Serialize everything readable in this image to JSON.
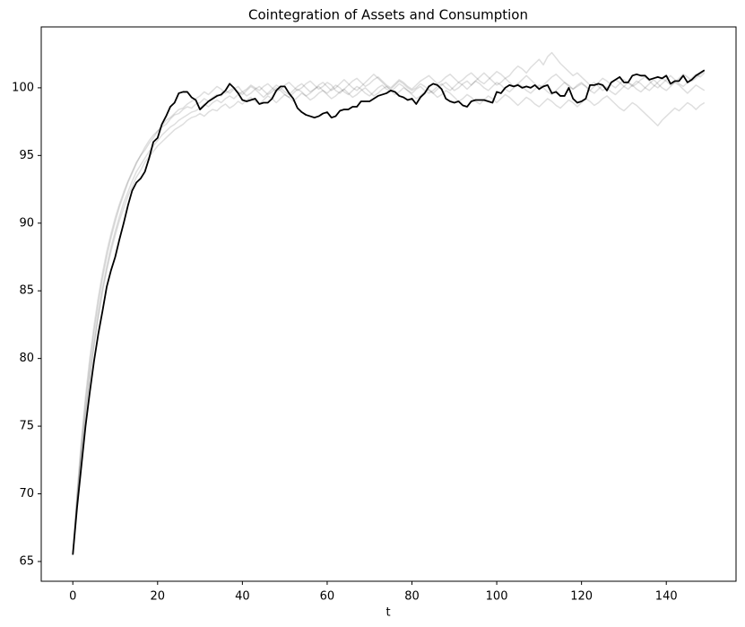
{
  "chart_data": {
    "type": "line",
    "title": "Cointegration of Assets and Consumption",
    "xlabel": "t",
    "x": [
      0,
      1,
      2,
      3,
      4,
      5,
      6,
      7,
      8,
      9,
      10,
      11,
      12,
      13,
      14,
      15,
      16,
      17,
      18,
      19,
      20,
      21,
      22,
      23,
      24,
      25,
      26,
      27,
      28,
      29,
      30,
      31,
      32,
      33,
      34,
      35,
      36,
      37,
      38,
      39,
      40,
      41,
      42,
      43,
      44,
      45,
      46,
      47,
      48,
      49,
      50,
      51,
      52,
      53,
      54,
      55,
      56,
      57,
      58,
      59,
      60,
      61,
      62,
      63,
      64,
      65,
      66,
      67,
      68,
      69,
      70,
      71,
      72,
      73,
      74,
      75,
      76,
      77,
      78,
      79,
      80,
      81,
      82,
      83,
      84,
      85,
      86,
      87,
      88,
      89,
      90,
      91,
      92,
      93,
      94,
      95,
      96,
      97,
      98,
      99,
      100,
      101,
      102,
      103,
      104,
      105,
      106,
      107,
      108,
      109,
      110,
      111,
      112,
      113,
      114,
      115,
      116,
      117,
      118,
      119,
      120,
      121,
      122,
      123,
      124,
      125,
      126,
      127,
      128,
      129,
      130,
      131,
      132,
      133,
      134,
      135,
      136,
      137,
      138,
      139,
      140,
      141,
      142,
      143,
      144,
      145,
      146,
      147,
      148,
      149
    ],
    "series": [
      {
        "color": "rgba(0,0,0,0.13)",
        "values": [
          65.5,
          69.8,
          73.5,
          76.7,
          79.5,
          81.9,
          84.0,
          85.9,
          87.5,
          88.9,
          90.1,
          91.2,
          92.1,
          93.0,
          93.7,
          94.4,
          95.0,
          95.4,
          95.9,
          96.3,
          96.8,
          97.1,
          97.3,
          97.7,
          98.0,
          98.1,
          98.4,
          98.6,
          98.5,
          98.8,
          98.9,
          99.2,
          99.0,
          99.3,
          99.5,
          99.4,
          99.8,
          99.6,
          99.9,
          100.1,
          99.7,
          99.9,
          100.2,
          100.0,
          99.8,
          100.1,
          100.3,
          100.0,
          99.7,
          99.9,
          100.2,
          100.4,
          100.1,
          99.8,
          100.0,
          100.3,
          100.5,
          100.2,
          99.9,
          100.1,
          100.4,
          100.2,
          99.8,
          99.6,
          99.9,
          100.2,
          100.5,
          100.7,
          100.4,
          100.1,
          100.3,
          100.6,
          100.8,
          100.5,
          100.2,
          100.0,
          100.3,
          100.6,
          100.4,
          100.1,
          99.9,
          100.2,
          100.5,
          100.7,
          100.9,
          100.6,
          100.3,
          100.5,
          100.8,
          101.0,
          100.7,
          100.4,
          100.6,
          100.9,
          101.1,
          100.8,
          100.5,
          100.3,
          100.6,
          100.9,
          101.2,
          101.0,
          100.7,
          100.9,
          101.3,
          101.6,
          101.4,
          101.1,
          101.5,
          101.8,
          102.1,
          101.7,
          102.3,
          102.6,
          102.2,
          101.8,
          101.5,
          101.2,
          100.9,
          101.1,
          100.8,
          100.5,
          100.2,
          100.4,
          100.1,
          99.8,
          100.0,
          100.3,
          100.6,
          100.4,
          100.1,
          99.9,
          100.2,
          100.5,
          100.3,
          100.0,
          99.8,
          100.1,
          100.4,
          100.7,
          100.5,
          100.2,
          100.4,
          100.7,
          101.0,
          100.8,
          100.5,
          100.7,
          101.0,
          101.2
        ]
      },
      {
        "color": "rgba(0,0,0,0.13)",
        "values": [
          65.5,
          69.3,
          72.8,
          75.8,
          78.5,
          80.9,
          83.0,
          84.9,
          86.5,
          87.9,
          89.1,
          90.2,
          91.1,
          92.0,
          92.7,
          93.4,
          93.9,
          94.5,
          94.9,
          95.3,
          95.7,
          96.0,
          96.3,
          96.6,
          96.9,
          97.1,
          97.3,
          97.6,
          97.8,
          97.9,
          98.1,
          97.9,
          98.2,
          98.4,
          98.3,
          98.6,
          98.8,
          98.5,
          98.7,
          99.0,
          98.8,
          99.1,
          99.3,
          99.0,
          98.8,
          99.1,
          99.4,
          99.2,
          98.9,
          99.2,
          99.5,
          99.3,
          99.0,
          99.3,
          99.6,
          99.4,
          99.1,
          99.3,
          99.6,
          99.8,
          99.5,
          99.2,
          99.4,
          99.7,
          99.9,
          99.6,
          99.3,
          99.5,
          99.8,
          100.0,
          99.7,
          99.4,
          99.6,
          99.9,
          100.1,
          99.8,
          99.5,
          99.7,
          100.0,
          99.8,
          99.5,
          99.2,
          99.4,
          99.7,
          99.9,
          99.6,
          99.3,
          99.5,
          99.8,
          99.6,
          99.3,
          99.0,
          99.2,
          99.5,
          99.3,
          99.0,
          98.8,
          99.1,
          99.4,
          99.2,
          98.9,
          99.2,
          99.5,
          99.3,
          99.0,
          98.7,
          99.0,
          99.3,
          99.1,
          98.8,
          98.6,
          98.9,
          99.2,
          99.0,
          98.7,
          98.5,
          98.8,
          99.1,
          98.9,
          98.6,
          98.9,
          99.2,
          99.0,
          98.7,
          98.9,
          99.2,
          99.4,
          99.1,
          98.8,
          98.5,
          98.3,
          98.6,
          98.9,
          98.7,
          98.4,
          98.1,
          97.8,
          97.5,
          97.2,
          97.6,
          97.9,
          98.2,
          98.5,
          98.3,
          98.6,
          98.9,
          98.7,
          98.4,
          98.7,
          98.9
        ]
      },
      {
        "color": "rgba(0,0,0,0.13)",
        "values": [
          65.5,
          70.0,
          73.9,
          77.2,
          80.0,
          82.4,
          84.5,
          86.3,
          87.9,
          89.2,
          90.4,
          91.4,
          92.3,
          93.1,
          93.8,
          94.5,
          95.0,
          95.6,
          96.1,
          96.5,
          96.8,
          97.2,
          97.6,
          97.8,
          98.1,
          98.4,
          98.5,
          98.8,
          99.0,
          99.2,
          99.4,
          99.7,
          99.5,
          99.8,
          100.1,
          99.9,
          99.6,
          99.8,
          100.0,
          99.7,
          99.5,
          99.8,
          100.1,
          99.9,
          99.6,
          99.3,
          99.6,
          99.9,
          100.2,
          100.0,
          99.7,
          99.5,
          99.8,
          100.1,
          100.3,
          100.0,
          99.7,
          99.9,
          100.2,
          100.4,
          100.1,
          99.8,
          100.0,
          100.3,
          100.6,
          100.3,
          100.0,
          99.8,
          100.1,
          100.4,
          100.7,
          101.0,
          100.7,
          100.4,
          100.1,
          99.9,
          100.2,
          100.5,
          100.3,
          100.0,
          99.8,
          100.0,
          100.3,
          100.1,
          99.8,
          99.6,
          99.9,
          100.2,
          100.4,
          100.1,
          99.8,
          100.0,
          100.3,
          100.5,
          100.2,
          100.5,
          100.8,
          101.1,
          100.8,
          100.5,
          100.2,
          100.4,
          100.7,
          100.4,
          100.1,
          100.3,
          100.6,
          100.9,
          100.6,
          100.3,
          100.0,
          100.2,
          100.5,
          100.8,
          101.0,
          100.7,
          100.4,
          100.1,
          99.9,
          100.2,
          100.4,
          100.1,
          99.8,
          99.6,
          99.9,
          100.2,
          100.0,
          99.7,
          99.5,
          99.8,
          100.1,
          100.4,
          100.2,
          99.9,
          99.7,
          100.0,
          100.3,
          100.6,
          100.3,
          100.0,
          99.8,
          100.1,
          100.4,
          100.2,
          99.9,
          99.6,
          99.9,
          100.2,
          100.0,
          99.8
        ]
      },
      {
        "color": "rgba(0,0,0,0.13)",
        "values": [
          65.5,
          69.5,
          73.0,
          76.0,
          78.8,
          81.2,
          83.3,
          85.2,
          86.8,
          88.2,
          89.4,
          90.5,
          91.5,
          92.3,
          93.1,
          93.8,
          94.3,
          94.8,
          95.3,
          95.7,
          96.1,
          96.5,
          96.8,
          97.1,
          97.3,
          97.6,
          97.8,
          98.0,
          98.2,
          98.3,
          98.5,
          98.8,
          98.6,
          98.9,
          99.1,
          98.9,
          99.2,
          99.4,
          99.2,
          99.5,
          99.7,
          99.4,
          99.6,
          99.9,
          100.1,
          99.8,
          99.5,
          99.7,
          100.0,
          99.8,
          99.5,
          99.3,
          99.6,
          99.9,
          99.7,
          99.4,
          99.6,
          99.9,
          100.1,
          99.8,
          99.6,
          99.9,
          100.2,
          100.0,
          99.7,
          99.5,
          99.8,
          100.1,
          99.9,
          99.6,
          99.4,
          99.7,
          100.0,
          100.2,
          99.9,
          99.7,
          100.0,
          100.3,
          100.1,
          99.8,
          99.6,
          99.9,
          100.1,
          99.8,
          99.6,
          99.8,
          100.1,
          100.3,
          100.0,
          99.8,
          100.1,
          100.4,
          100.2,
          99.9,
          100.2,
          100.5,
          100.3,
          100.0,
          99.8,
          100.1,
          100.4,
          100.2,
          99.9,
          99.7,
          100.0,
          100.3,
          100.1,
          99.8,
          99.6,
          99.9,
          100.2,
          100.0,
          99.7,
          99.5,
          99.8,
          100.1,
          100.4,
          100.2,
          99.9,
          100.1,
          100.3,
          100.1,
          99.8,
          100.1,
          100.4,
          100.7,
          100.5,
          100.2,
          100.0,
          100.3,
          100.6,
          100.4,
          100.1,
          100.3,
          100.6,
          100.8,
          100.5,
          100.2,
          100.0,
          100.3,
          100.6,
          100.9,
          100.6,
          100.3,
          100.1,
          100.4,
          100.7,
          101.0,
          100.8,
          101.1
        ]
      },
      {
        "color": "#000000",
        "values": [
          65.5,
          69.0,
          72.0,
          75.0,
          77.5,
          79.8,
          81.8,
          83.5,
          85.3,
          86.5,
          87.5,
          88.8,
          90.0,
          91.3,
          92.4,
          93.0,
          93.3,
          93.8,
          94.8,
          96.0,
          96.3,
          97.3,
          97.9,
          98.6,
          98.9,
          99.6,
          99.7,
          99.7,
          99.3,
          99.1,
          98.4,
          98.7,
          99.0,
          99.2,
          99.4,
          99.5,
          99.8,
          100.3,
          100.0,
          99.6,
          99.1,
          99.0,
          99.1,
          99.2,
          98.8,
          98.9,
          98.9,
          99.2,
          99.8,
          100.1,
          100.1,
          99.6,
          99.2,
          98.5,
          98.2,
          98.0,
          97.9,
          97.8,
          97.9,
          98.1,
          98.2,
          97.8,
          97.9,
          98.3,
          98.4,
          98.4,
          98.6,
          98.6,
          99.0,
          99.0,
          99.0,
          99.2,
          99.4,
          99.5,
          99.6,
          99.8,
          99.7,
          99.4,
          99.3,
          99.1,
          99.2,
          98.8,
          99.3,
          99.6,
          100.1,
          100.3,
          100.2,
          99.9,
          99.2,
          99.0,
          98.9,
          99.0,
          98.7,
          98.6,
          99.0,
          99.1,
          99.1,
          99.1,
          99.0,
          98.9,
          99.7,
          99.6,
          100.0,
          100.2,
          100.1,
          100.2,
          100.0,
          100.1,
          100.0,
          100.2,
          99.9,
          100.1,
          100.2,
          99.6,
          99.7,
          99.4,
          99.4,
          100.0,
          99.2,
          98.9,
          99.0,
          99.2,
          100.2,
          100.2,
          100.3,
          100.2,
          99.8,
          100.4,
          100.6,
          100.8,
          100.4,
          100.4,
          100.9,
          101.0,
          100.9,
          100.9,
          100.6,
          100.7,
          100.8,
          100.7,
          100.9,
          100.3,
          100.5,
          100.5,
          100.9,
          100.4,
          100.6,
          100.9,
          101.1,
          101.3
        ]
      }
    ],
    "xlim": [
      -7.45,
      156.45
    ],
    "ylim": [
      63.54,
      104.5
    ],
    "xticks": [
      0,
      20,
      40,
      60,
      80,
      100,
      120,
      140
    ],
    "yticks": [
      65,
      70,
      75,
      80,
      85,
      90,
      95,
      100
    ]
  }
}
